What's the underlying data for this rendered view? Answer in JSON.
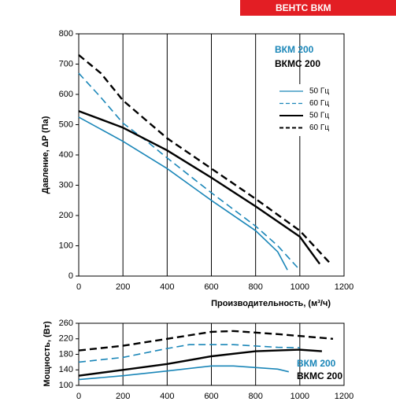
{
  "header": {
    "brand": "ВЕНТС ВКМ"
  },
  "chart_data": [
    {
      "type": "line",
      "xlabel": "Производительность, (м³/ч)",
      "ylabel": "Давление, ΔР (Па)",
      "xlim": [
        0,
        1200
      ],
      "xticks": [
        0,
        200,
        400,
        600,
        800,
        1000,
        1200
      ],
      "ylim": [
        0,
        800
      ],
      "yticks": [
        0,
        100,
        200,
        300,
        400,
        500,
        600,
        700,
        800
      ],
      "grid": "x",
      "legend": "right",
      "annotations": [
        {
          "text": "ВКМ 200",
          "color": "#1a86b8"
        },
        {
          "text": "ВКМС 200",
          "color": "#000000"
        }
      ],
      "series": [
        {
          "name": "50 Гц",
          "color": "#1a86b8",
          "dash": false,
          "x": [
            0,
            200,
            400,
            600,
            800,
            900,
            944
          ],
          "values": [
            525,
            445,
            355,
            250,
            150,
            80,
            20
          ]
        },
        {
          "name": "60 Гц",
          "color": "#1a86b8",
          "dash": true,
          "x": [
            0,
            100,
            200,
            300,
            400,
            600,
            800,
            900,
            1000
          ],
          "values": [
            670,
            590,
            505,
            450,
            390,
            275,
            165,
            100,
            20
          ]
        },
        {
          "name": "50 Гц",
          "color": "#000000",
          "dash": false,
          "x": [
            0,
            200,
            400,
            600,
            800,
            1000,
            1090
          ],
          "values": [
            545,
            490,
            415,
            325,
            230,
            130,
            40
          ]
        },
        {
          "name": "60 Гц",
          "color": "#000000",
          "dash": true,
          "x": [
            0,
            100,
            200,
            400,
            600,
            800,
            1000,
            1140
          ],
          "values": [
            730,
            670,
            580,
            455,
            355,
            255,
            150,
            40
          ]
        }
      ]
    },
    {
      "type": "line",
      "ylabel": "Мощность, (Вт)",
      "xlim": [
        0,
        1200
      ],
      "xticks": [
        0,
        200,
        400,
        600,
        800,
        1000,
        1200
      ],
      "ylim": [
        100,
        260
      ],
      "yticks": [
        100,
        140,
        180,
        220,
        260
      ],
      "grid": "x",
      "annotations": [
        {
          "text": "ВКМ 200",
          "color": "#1a86b8"
        },
        {
          "text": "ВКМС 200",
          "color": "#000000"
        }
      ],
      "series": [
        {
          "color": "#1a86b8",
          "dash": false,
          "x": [
            0,
            200,
            400,
            600,
            700,
            900,
            950
          ],
          "values": [
            115,
            125,
            137,
            150,
            150,
            142,
            135
          ]
        },
        {
          "color": "#1a86b8",
          "dash": true,
          "x": [
            0,
            200,
            400,
            500,
            700,
            900,
            1000
          ],
          "values": [
            160,
            172,
            195,
            205,
            205,
            198,
            197
          ]
        },
        {
          "color": "#000000",
          "dash": false,
          "x": [
            0,
            200,
            400,
            600,
            800,
            1000,
            1100
          ],
          "values": [
            125,
            140,
            155,
            175,
            188,
            192,
            188
          ]
        },
        {
          "color": "#000000",
          "dash": true,
          "x": [
            0,
            200,
            400,
            600,
            700,
            900,
            1150
          ],
          "values": [
            190,
            202,
            220,
            238,
            240,
            232,
            220
          ]
        }
      ]
    }
  ]
}
